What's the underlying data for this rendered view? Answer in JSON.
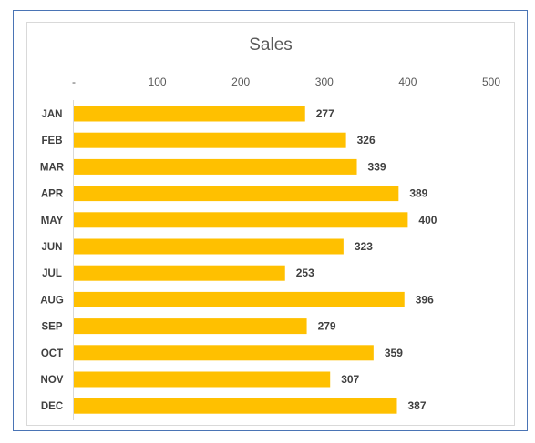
{
  "chart_data": {
    "type": "bar",
    "orientation": "horizontal",
    "title": "Sales",
    "categories": [
      "JAN",
      "FEB",
      "MAR",
      "APR",
      "MAY",
      "JUN",
      "JUL",
      "AUG",
      "SEP",
      "OCT",
      "NOV",
      "DEC"
    ],
    "values": [
      277,
      326,
      339,
      389,
      400,
      323,
      253,
      396,
      279,
      359,
      307,
      387
    ],
    "xlim": [
      0,
      500
    ],
    "x_ticks": [
      "-",
      "100",
      "200",
      "300",
      "400",
      "500"
    ],
    "x_axis_position": "top",
    "grid": false,
    "legend": "none",
    "data_labels": true,
    "bar_color": "#ffc000"
  }
}
